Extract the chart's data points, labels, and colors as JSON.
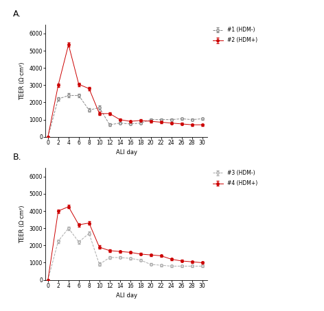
{
  "x_ticks": [
    0,
    2,
    4,
    6,
    8,
    10,
    12,
    14,
    16,
    18,
    20,
    22,
    24,
    26,
    28,
    30
  ],
  "panel_A": {
    "label_title": "A.",
    "series1": {
      "label": "#1 (HDM-)",
      "color": "#888888",
      "marker": "o",
      "markerfacecolor": "white",
      "linestyle": "--",
      "x": [
        0,
        2,
        4,
        6,
        8,
        10,
        12,
        14,
        16,
        18,
        20,
        22,
        24,
        26,
        28,
        30
      ],
      "y": [
        0,
        2200,
        2400,
        2400,
        1550,
        1700,
        700,
        800,
        750,
        800,
        1000,
        1000,
        1000,
        1050,
        1000,
        1050
      ],
      "yerr": [
        0,
        100,
        120,
        100,
        100,
        100,
        80,
        60,
        60,
        60,
        60,
        60,
        60,
        60,
        60,
        60
      ]
    },
    "series2": {
      "label": "#2 (HDM+)",
      "color": "#cc0000",
      "marker": "o",
      "markerfacecolor": "#cc0000",
      "linestyle": "-",
      "x": [
        0,
        2,
        4,
        6,
        8,
        10,
        12,
        14,
        16,
        18,
        20,
        22,
        24,
        26,
        28,
        30
      ],
      "y": [
        0,
        3000,
        5350,
        3050,
        2800,
        1350,
        1350,
        1000,
        900,
        950,
        900,
        850,
        800,
        750,
        700,
        700
      ],
      "yerr": [
        0,
        100,
        120,
        100,
        100,
        100,
        80,
        60,
        60,
        60,
        60,
        60,
        60,
        60,
        60,
        60
      ]
    },
    "ylim": [
      0,
      6500
    ],
    "yticks": [
      0,
      1000,
      2000,
      3000,
      4000,
      5000,
      6000
    ],
    "ylabel": "TEER (Ω·cm²)",
    "xlabel": "ALI day"
  },
  "panel_B": {
    "label_title": "B.",
    "series1": {
      "label": "#3 (HDM-)",
      "color": "#aaaaaa",
      "marker": "o",
      "markerfacecolor": "white",
      "linestyle": "--",
      "x": [
        0,
        2,
        4,
        6,
        8,
        10,
        12,
        14,
        16,
        18,
        20,
        22,
        24,
        26,
        28,
        30
      ],
      "y": [
        0,
        2250,
        3000,
        2200,
        2700,
        900,
        1300,
        1300,
        1250,
        1150,
        900,
        850,
        800,
        800,
        800,
        800
      ],
      "yerr": [
        0,
        100,
        100,
        100,
        100,
        100,
        80,
        60,
        60,
        60,
        60,
        60,
        60,
        60,
        60,
        60
      ]
    },
    "series2": {
      "label": "#4 (HDM+)",
      "color": "#cc0000",
      "marker": "o",
      "markerfacecolor": "#cc0000",
      "linestyle": "-",
      "x": [
        0,
        2,
        4,
        6,
        8,
        10,
        12,
        14,
        16,
        18,
        20,
        22,
        24,
        26,
        28,
        30
      ],
      "y": [
        0,
        4000,
        4250,
        3200,
        3300,
        1900,
        1700,
        1650,
        1600,
        1500,
        1450,
        1400,
        1200,
        1100,
        1050,
        1000
      ],
      "yerr": [
        0,
        100,
        100,
        100,
        100,
        100,
        80,
        60,
        60,
        60,
        60,
        60,
        60,
        60,
        60,
        60
      ]
    },
    "ylim": [
      0,
      6500
    ],
    "yticks": [
      0,
      1000,
      2000,
      3000,
      4000,
      5000,
      6000
    ],
    "ylabel": "TEER (Ω·cm²)",
    "xlabel": "ALI day"
  },
  "background_color": "#ffffff",
  "fontsize": 6,
  "tick_fontsize": 5.5,
  "label_fontsize": 9
}
